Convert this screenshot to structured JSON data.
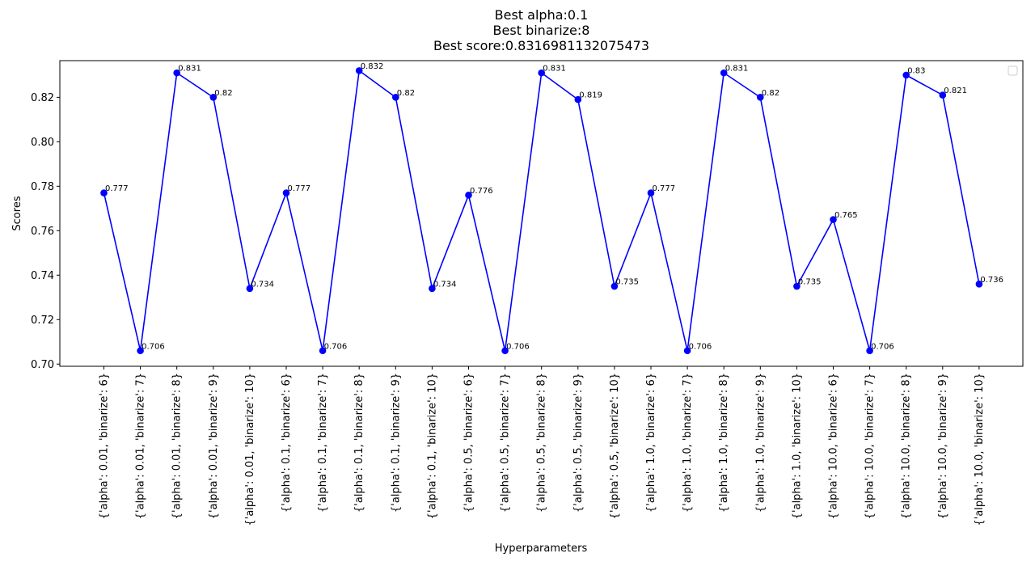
{
  "chart_data": {
    "type": "line",
    "title_lines": [
      "Best alpha:0.1",
      "Best binarize:8",
      "Best score:0.8316981132075473"
    ],
    "xlabel": "Hyperparameters",
    "ylabel": "Scores",
    "categories": [
      "{'alpha': 0.01, 'binarize': 6}",
      "{'alpha': 0.01, 'binarize': 7}",
      "{'alpha': 0.01, 'binarize': 8}",
      "{'alpha': 0.01, 'binarize': 9}",
      "{'alpha': 0.01, 'binarize': 10}",
      "{'alpha': 0.1, 'binarize': 6}",
      "{'alpha': 0.1, 'binarize': 7}",
      "{'alpha': 0.1, 'binarize': 8}",
      "{'alpha': 0.1, 'binarize': 9}",
      "{'alpha': 0.1, 'binarize': 10}",
      "{'alpha': 0.5, 'binarize': 6}",
      "{'alpha': 0.5, 'binarize': 7}",
      "{'alpha': 0.5, 'binarize': 8}",
      "{'alpha': 0.5, 'binarize': 9}",
      "{'alpha': 0.5, 'binarize': 10}",
      "{'alpha': 1.0, 'binarize': 6}",
      "{'alpha': 1.0, 'binarize': 7}",
      "{'alpha': 1.0, 'binarize': 8}",
      "{'alpha': 1.0, 'binarize': 9}",
      "{'alpha': 1.0, 'binarize': 10}",
      "{'alpha': 10.0, 'binarize': 6}",
      "{'alpha': 10.0, 'binarize': 7}",
      "{'alpha': 10.0, 'binarize': 8}",
      "{'alpha': 10.0, 'binarize': 9}",
      "{'alpha': 10.0, 'binarize': 10}"
    ],
    "values": [
      0.777,
      0.706,
      0.831,
      0.82,
      0.734,
      0.777,
      0.706,
      0.832,
      0.82,
      0.734,
      0.776,
      0.706,
      0.831,
      0.819,
      0.735,
      0.777,
      0.706,
      0.831,
      0.82,
      0.735,
      0.765,
      0.706,
      0.83,
      0.821,
      0.736
    ],
    "data_labels": [
      "0.777",
      "0.706",
      "0.831",
      "0.82",
      "0.734",
      "0.777",
      "0.706",
      "0.832",
      "0.82",
      "0.734",
      "0.776",
      "0.706",
      "0.831",
      "0.819",
      "0.735",
      "0.777",
      "0.706",
      "0.831",
      "0.82",
      "0.735",
      "0.765",
      "0.706",
      "0.83",
      "0.821",
      "0.736"
    ],
    "ylim": [
      0.699,
      0.8365
    ],
    "yticks": [
      0.7,
      0.72,
      0.74,
      0.76,
      0.78,
      0.8,
      0.82
    ],
    "ytick_labels": [
      "0.70",
      "0.72",
      "0.74",
      "0.76",
      "0.78",
      "0.80",
      "0.82"
    ],
    "grid": false,
    "legend": "upper-right (empty)",
    "colors": {
      "series": "#0000ff",
      "axes": "#000000",
      "background": "#ffffff"
    }
  }
}
